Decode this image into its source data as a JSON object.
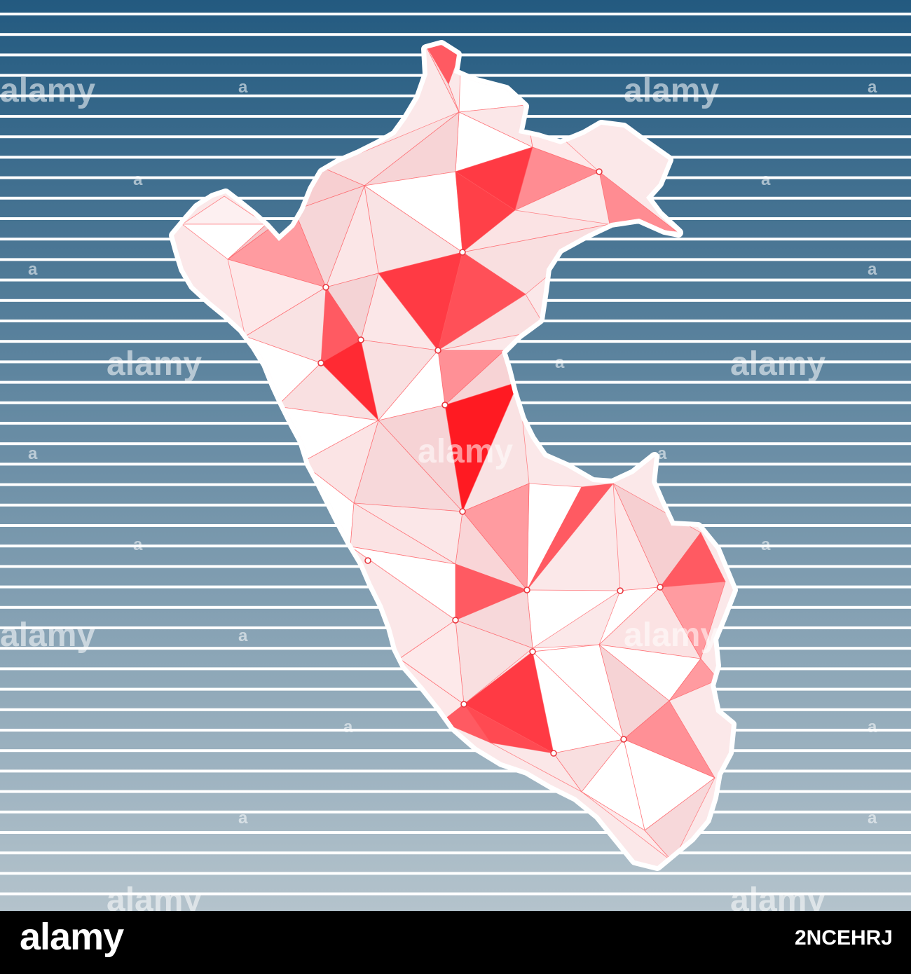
{
  "watermark": {
    "brand": "alamy",
    "mark": "a"
  },
  "footer": {
    "logo": "alamy",
    "image_id": "2NCEHRJ"
  },
  "colors": {
    "background_top": "#235a80",
    "background_bottom": "#b4c3cc",
    "stripe": "#ffffff",
    "map_outline": "#ffffff",
    "map_red": "#ff2a35",
    "map_pink": "#f6cfd1",
    "footer": "#000000"
  },
  "map": {
    "country_shape": "Peru",
    "style": "low-poly triangulated mosaic"
  }
}
